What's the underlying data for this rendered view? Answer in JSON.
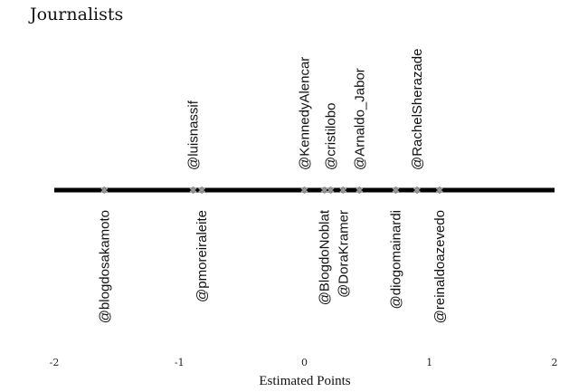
{
  "chart_data": {
    "type": "scatter",
    "title": "Journalists",
    "xlabel": "Estimated Points",
    "ylabel": "",
    "xlim": [
      -2,
      2
    ],
    "xticks": [
      -2,
      -1,
      0,
      1,
      2
    ],
    "grid": false,
    "legend": "none",
    "axis_color": "#000000",
    "marker_color": "#9a9a9a",
    "points": [
      {
        "label": "@blogdosakamoto",
        "x": -1.6,
        "side": "below"
      },
      {
        "label": "@luisnassif",
        "x": -0.89,
        "side": "above"
      },
      {
        "label": "@pmoreiraleite",
        "x": -0.82,
        "side": "below"
      },
      {
        "label": "@KennedyAlencar",
        "x": 0.0,
        "side": "above"
      },
      {
        "label": "@BlogdoNoblat",
        "x": 0.16,
        "side": "below"
      },
      {
        "label": "@cristilobo",
        "x": 0.21,
        "side": "above"
      },
      {
        "label": "@DoraKramer",
        "x": 0.31,
        "side": "below"
      },
      {
        "label": "@Arnaldo_Jabor",
        "x": 0.44,
        "side": "above"
      },
      {
        "label": "@diogomainardi",
        "x": 0.73,
        "side": "below"
      },
      {
        "label": "@RachelSherazade",
        "x": 0.9,
        "side": "above"
      },
      {
        "label": "@reinaldoazevedo",
        "x": 1.08,
        "side": "below"
      }
    ]
  }
}
